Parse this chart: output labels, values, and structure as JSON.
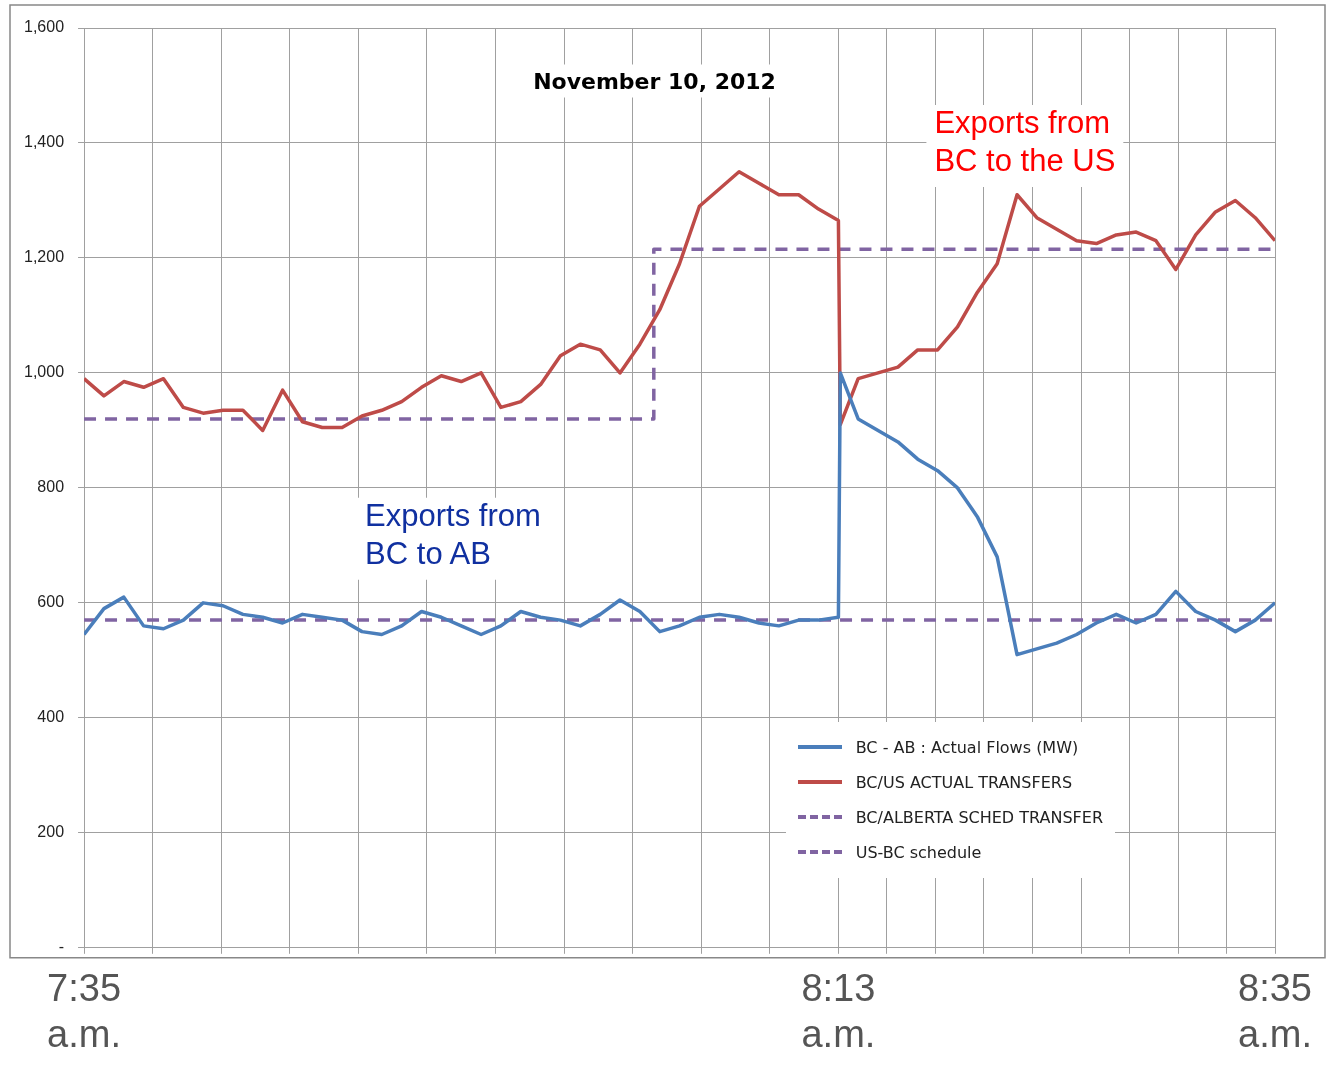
{
  "chart_data": {
    "type": "line",
    "title": "November 10, 2012",
    "x": [
      7.5833,
      7.6,
      7.6167,
      7.6333,
      7.65,
      7.6667,
      7.6833,
      7.7,
      7.7167,
      7.7333,
      7.75,
      7.7667,
      7.7833,
      7.8,
      7.8167,
      7.8333,
      7.85,
      7.8667,
      7.8833,
      7.9,
      7.9167,
      7.9333,
      7.95,
      7.9667,
      7.9833,
      8.0,
      8.0167,
      8.0333,
      8.05,
      8.0667,
      8.0833,
      8.1,
      8.1167,
      8.1333,
      8.15,
      8.1667,
      8.1833,
      8.2,
      8.2167,
      8.2183,
      8.2333,
      8.25,
      8.2667,
      8.2833,
      8.3,
      8.3167,
      8.3333,
      8.35,
      8.3667,
      8.3833,
      8.4,
      8.4167,
      8.4333,
      8.45,
      8.4667,
      8.4833,
      8.5,
      8.5167,
      8.5333,
      8.55,
      8.5667,
      8.5833
    ],
    "series": [
      {
        "name": "BC - AB : Actual Flows (MW)",
        "color": "#4a7ebb",
        "line_style": "solid",
        "values": [
          545,
          590,
          610,
          560,
          555,
          570,
          600,
          595,
          580,
          575,
          565,
          580,
          575,
          570,
          550,
          545,
          560,
          585,
          575,
          560,
          545,
          560,
          585,
          575,
          570,
          560,
          580,
          605,
          585,
          550,
          560,
          575,
          580,
          575,
          565,
          560,
          570,
          570,
          575,
          1000,
          920,
          900,
          880,
          850,
          830,
          800,
          750,
          680,
          510,
          520,
          530,
          545,
          565,
          580,
          565,
          580,
          620,
          585,
          570,
          550,
          570,
          600
        ]
      },
      {
        "name": "BC/US ACTUAL TRANSFERS",
        "color": "#be4b48",
        "line_style": "solid",
        "values": [
          990,
          960,
          985,
          975,
          990,
          940,
          930,
          935,
          935,
          900,
          970,
          915,
          905,
          905,
          925,
          935,
          950,
          975,
          995,
          985,
          1000,
          940,
          950,
          980,
          1030,
          1050,
          1040,
          1000,
          1050,
          1110,
          1190,
          1290,
          1320,
          1350,
          1330,
          1310,
          1310,
          1285,
          1265,
          910,
          990,
          1000,
          1010,
          1040,
          1040,
          1080,
          1140,
          1190,
          1310,
          1270,
          1250,
          1230,
          1225,
          1240,
          1245,
          1230,
          1180,
          1240,
          1280,
          1300,
          1270,
          1230
        ]
      },
      {
        "name": "BC/ALBERTA SCHED TRANSFER",
        "color": "#8064a2",
        "line_style": "dashed",
        "x": [
          7.5833,
          8.5833
        ],
        "values": [
          570,
          570
        ]
      },
      {
        "name": "US-BC schedule",
        "color": "#8064a2",
        "line_style": "dashed",
        "x": [
          7.5833,
          8.0617,
          8.0617,
          8.5833
        ],
        "values": [
          920,
          920,
          1215,
          1215
        ]
      }
    ],
    "xlim": [
      7.5833,
      8.5833
    ],
    "xticks": [
      {
        "value": 7.5833,
        "label": "7:35 a.m."
      },
      {
        "value": 7.6409,
        "label": null
      },
      {
        "value": 7.6985,
        "label": null
      },
      {
        "value": 7.7561,
        "label": null
      },
      {
        "value": 7.8136,
        "label": null
      },
      {
        "value": 7.8712,
        "label": null
      },
      {
        "value": 7.9288,
        "label": null
      },
      {
        "value": 7.9864,
        "label": null
      },
      {
        "value": 8.0439,
        "label": null
      },
      {
        "value": 8.1015,
        "label": null
      },
      {
        "value": 8.1591,
        "label": null
      },
      {
        "value": 8.2167,
        "label": "8:13 a.m."
      },
      {
        "value": 8.2574,
        "label": null
      },
      {
        "value": 8.2981,
        "label": null
      },
      {
        "value": 8.3389,
        "label": null
      },
      {
        "value": 8.3796,
        "label": null
      },
      {
        "value": 8.4204,
        "label": null
      },
      {
        "value": 8.4611,
        "label": null
      },
      {
        "value": 8.5019,
        "label": null
      },
      {
        "value": 8.5426,
        "label": null
      },
      {
        "value": 8.5833,
        "label": "8:35 a.m."
      }
    ],
    "ylim": [
      0,
      1600
    ],
    "yticks": [
      {
        "value": 0,
        "label": "-"
      },
      200,
      400,
      600,
      800,
      {
        "value": 1000,
        "label": "1,000"
      },
      {
        "value": 1200,
        "label": "1,200"
      },
      {
        "value": 1400,
        "label": "1,400"
      },
      {
        "value": 1600,
        "label": "1,600"
      }
    ],
    "annotations": [
      "Exports from BC to the US",
      "Exports from BC to AB"
    ],
    "grid": true,
    "legend": "bottom right",
    "marker": "none"
  }
}
